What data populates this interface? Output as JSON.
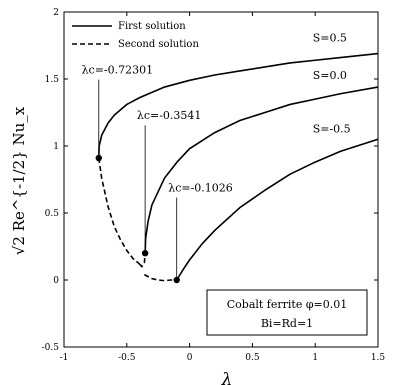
{
  "chart_data": {
    "type": "line",
    "xlabel": "λ",
    "ylabel": "√2 Re^{-1/2} Nu_x",
    "xlim": [
      -1,
      1.5
    ],
    "ylim": [
      -0.5,
      2
    ],
    "xticks": [
      -1,
      -0.5,
      0,
      0.5,
      1,
      1.5
    ],
    "xtick_labels": [
      "-1",
      "-0.5",
      "0",
      "0.5",
      "1",
      "1.5"
    ],
    "yticks": [
      -0.5,
      0,
      0.5,
      1,
      1.5,
      2
    ],
    "ytick_labels": [
      "-0.5",
      "0",
      "0.5",
      "1",
      "1.5",
      "2"
    ],
    "grid": false,
    "legend": {
      "placement": "top-left",
      "entries": [
        {
          "label": "First solution",
          "style": "solid"
        },
        {
          "label": "Second solution",
          "style": "dashed"
        }
      ]
    },
    "series": [
      {
        "name": "S=0.5",
        "first_solution": {
          "x": [
            -0.72301,
            -0.72,
            -0.7,
            -0.65,
            -0.6,
            -0.5,
            -0.4,
            -0.2,
            0,
            0.2,
            0.4,
            0.6,
            0.8,
            1.0,
            1.2,
            1.5
          ],
          "y": [
            0.91,
            1.0,
            1.08,
            1.17,
            1.23,
            1.31,
            1.36,
            1.44,
            1.49,
            1.53,
            1.56,
            1.59,
            1.62,
            1.64,
            1.66,
            1.69
          ]
        },
        "second_solution": {
          "x": [
            -0.72301,
            -0.7,
            -0.65,
            -0.6,
            -0.55,
            -0.5,
            -0.45,
            -0.4
          ],
          "y": [
            0.91,
            0.76,
            0.55,
            0.4,
            0.3,
            0.22,
            0.16,
            0.12
          ]
        }
      },
      {
        "name": "S=0.0",
        "first_solution": {
          "x": [
            -0.3541,
            -0.35,
            -0.33,
            -0.3,
            -0.2,
            -0.1,
            0,
            0.2,
            0.4,
            0.6,
            0.8,
            1.0,
            1.2,
            1.5
          ],
          "y": [
            0.2,
            0.31,
            0.44,
            0.56,
            0.76,
            0.88,
            0.98,
            1.1,
            1.19,
            1.25,
            1.31,
            1.35,
            1.39,
            1.44
          ]
        },
        "second_solution": {
          "x": [
            -0.4,
            -0.38,
            -0.36,
            -0.3541
          ],
          "y": [
            0.12,
            0.1,
            0.13,
            0.2
          ]
        }
      },
      {
        "name": "S=-0.5",
        "first_solution": {
          "x": [
            -0.1026,
            -0.05,
            0,
            0.1,
            0.2,
            0.4,
            0.6,
            0.8,
            1.0,
            1.2,
            1.5
          ],
          "y": [
            0,
            0.08,
            0.15,
            0.27,
            0.37,
            0.54,
            0.67,
            0.79,
            0.88,
            0.96,
            1.05
          ]
        },
        "second_solution": {
          "x": [
            -0.36,
            -0.3,
            -0.25,
            -0.2,
            -0.15,
            -0.1026
          ],
          "y": [
            0.04,
            0.01,
            0.0,
            -0.005,
            0.0,
            0
          ]
        }
      }
    ],
    "critical_points": [
      {
        "x": -0.72301,
        "y": 0.91,
        "label": "λc=-0.72301",
        "label_x": -0.86,
        "label_y": 1.54
      },
      {
        "x": -0.3541,
        "y": 0.2,
        "label": "λc=-0.3541",
        "label_x": -0.42,
        "label_y": 1.2
      },
      {
        "x": -0.1026,
        "y": 0,
        "label": "λc=-0.1026",
        "label_x": -0.17,
        "label_y": 0.66
      }
    ],
    "curve_labels": [
      {
        "text": "S=0.5",
        "x": 0.98,
        "y": 1.78
      },
      {
        "text": "S=0.0",
        "x": 0.98,
        "y": 1.5
      },
      {
        "text": "S=-0.5",
        "x": 0.98,
        "y": 1.1
      }
    ],
    "annotation_box": {
      "line1": "Cobalt ferrite φ=0.01",
      "line2": "Bi=Rd=1"
    }
  }
}
